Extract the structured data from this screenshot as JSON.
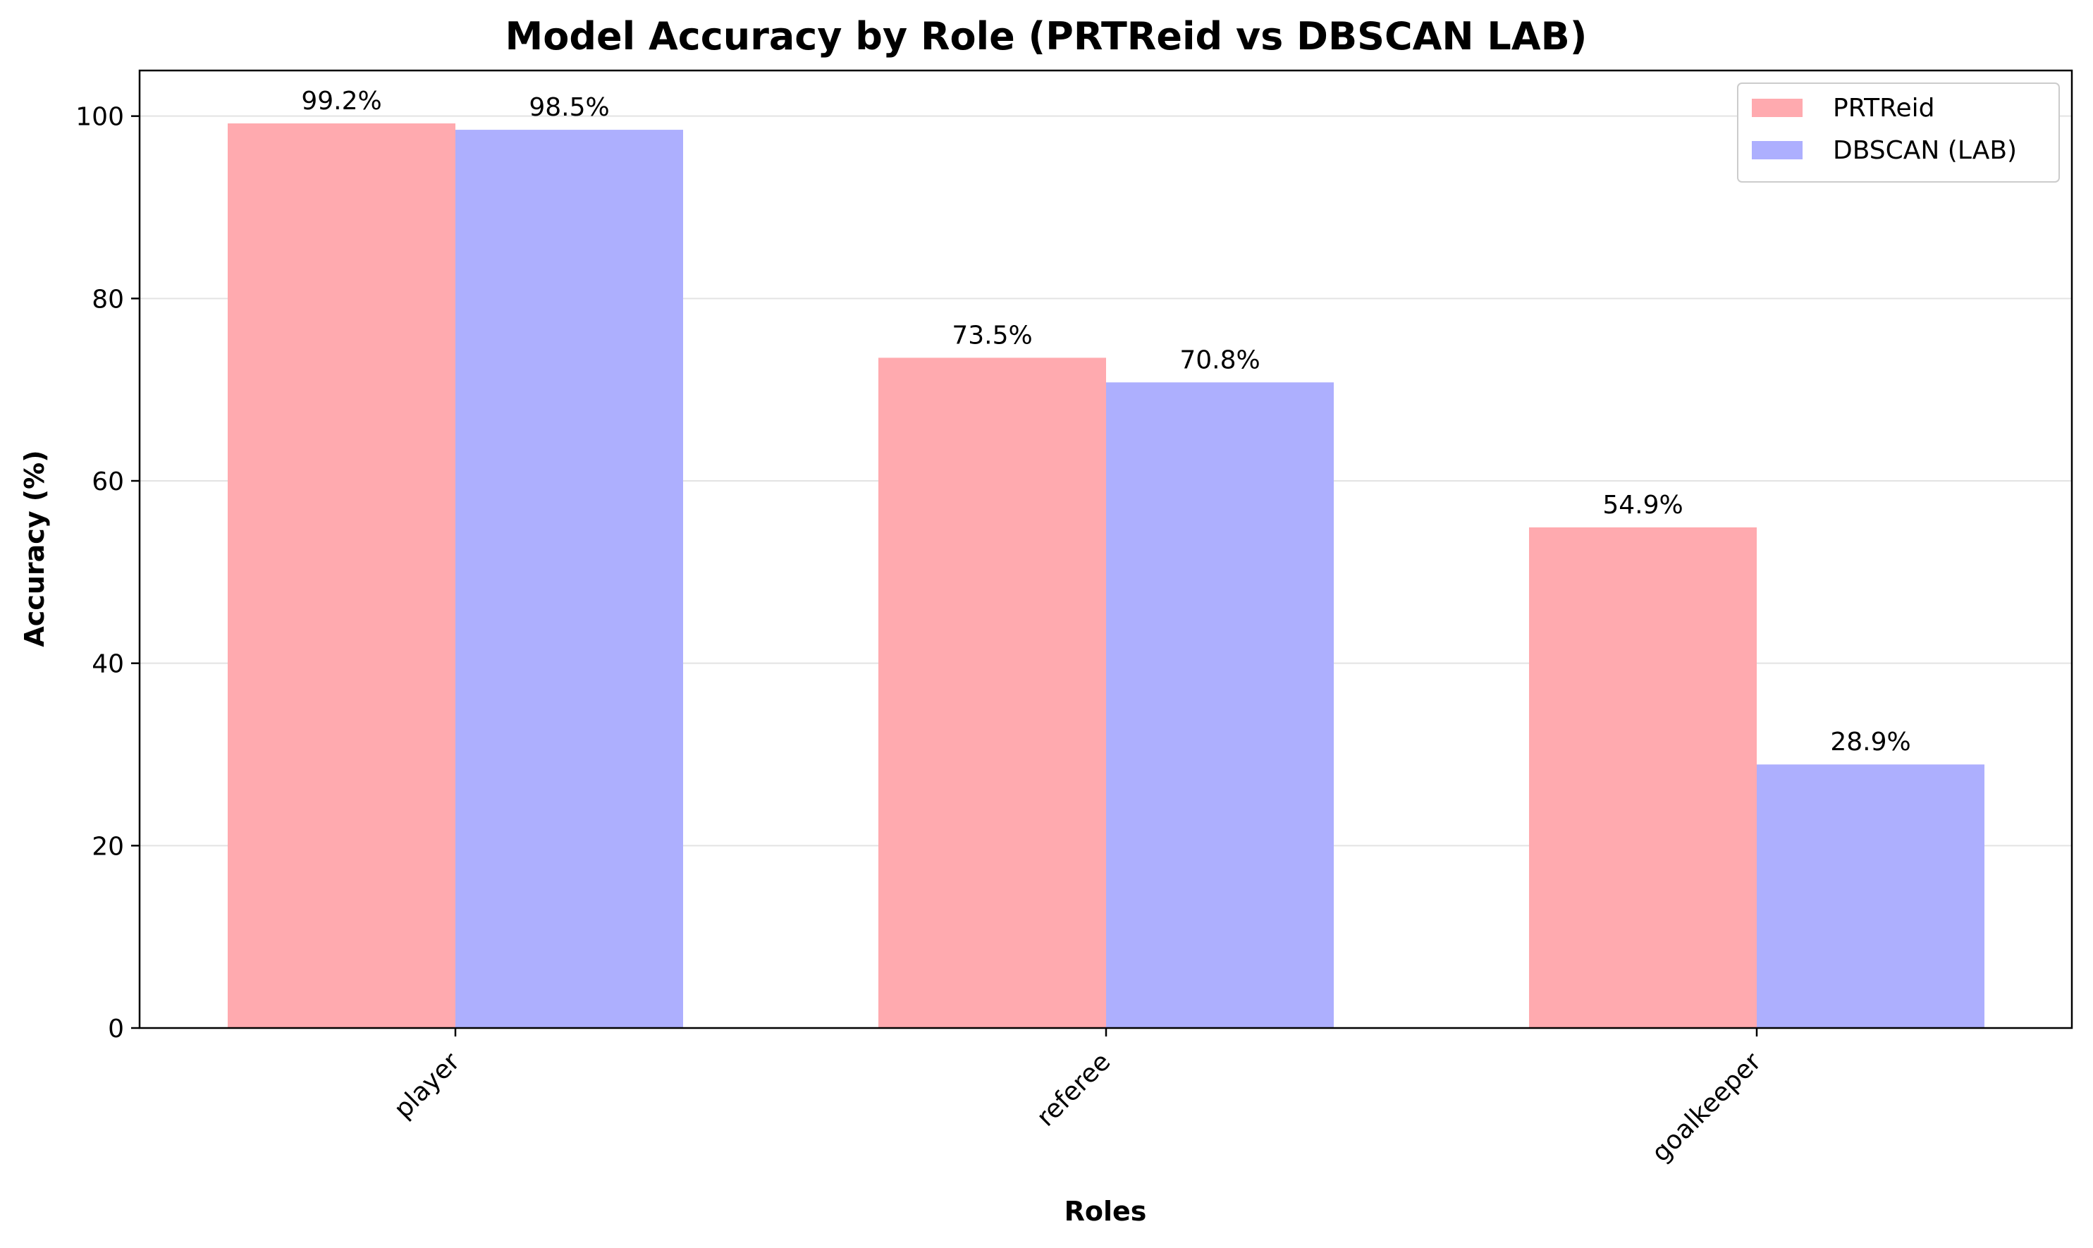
{
  "chart_data": {
    "type": "bar",
    "title": "Model Accuracy by Role (PRTReid vs DBSCAN LAB)",
    "xlabel": "Roles",
    "ylabel": "Accuracy (%)",
    "categories": [
      "player",
      "referee",
      "goalkeeper"
    ],
    "series": [
      {
        "name": "PRTReid",
        "color": "#ffaaaf",
        "values": [
          99.2,
          73.5,
          54.9
        ],
        "labels": [
          "99.2%",
          "73.5%",
          "54.9%"
        ]
      },
      {
        "name": "DBSCAN (LAB)",
        "color": "#adaffe",
        "values": [
          98.5,
          70.8,
          28.9
        ],
        "labels": [
          "98.5%",
          "70.8%",
          "28.9%"
        ]
      }
    ],
    "ylim": [
      0,
      105
    ],
    "yticks": [
      0,
      20,
      40,
      60,
      80,
      100
    ],
    "grid": "y",
    "legend": "top-right"
  }
}
